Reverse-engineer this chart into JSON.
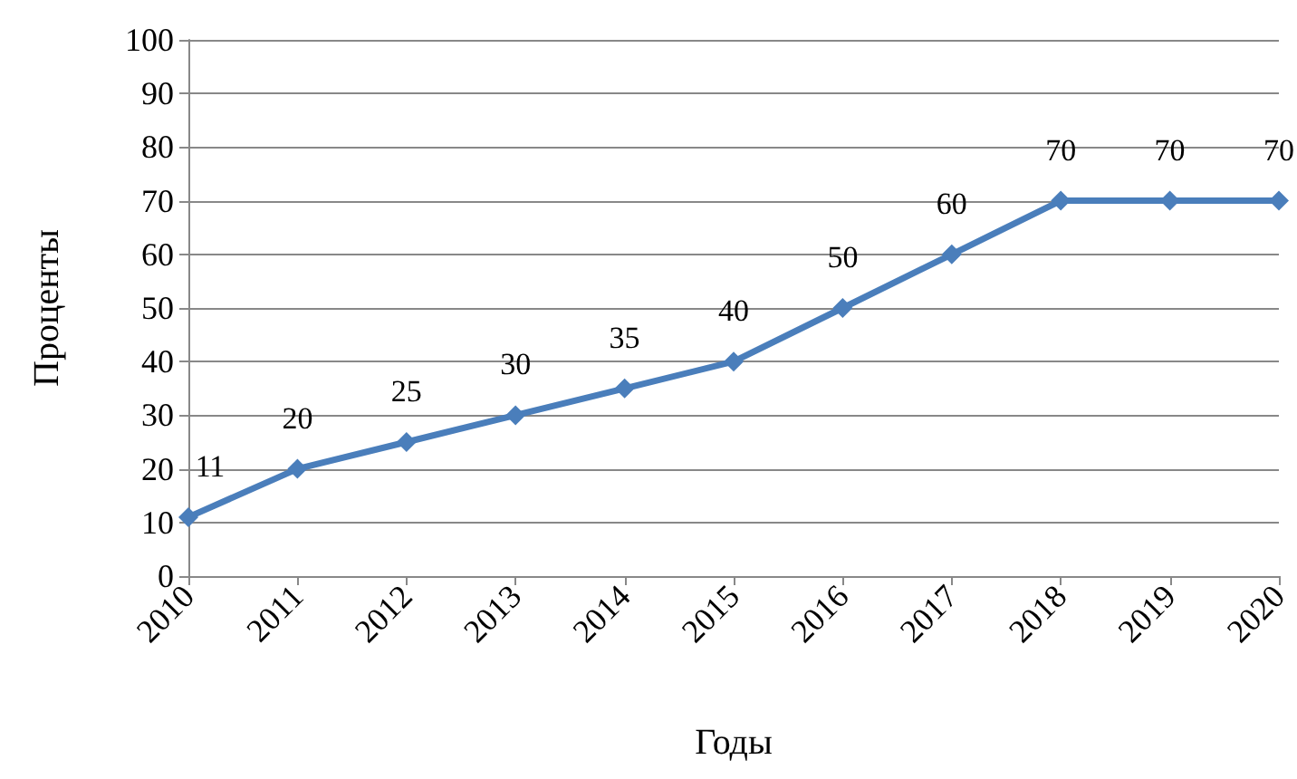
{
  "chart_data": {
    "type": "line",
    "xlabel": "Годы",
    "ylabel": "Проценты",
    "categories": [
      "2010",
      "2011",
      "2012",
      "2013",
      "2014",
      "2015",
      "2016",
      "2017",
      "2018",
      "2019",
      "2020"
    ],
    "series": [
      {
        "color": "#4a7ebb",
        "values": [
          11,
          20,
          25,
          30,
          35,
          40,
          50,
          60,
          70,
          70,
          70
        ]
      }
    ],
    "ylim": [
      0,
      100
    ],
    "yticks": [
      0,
      10,
      20,
      30,
      40,
      50,
      60,
      70,
      80,
      90,
      100
    ],
    "grid": "y",
    "marker": "diamond",
    "line_style": "solid",
    "data_labels": true
  }
}
